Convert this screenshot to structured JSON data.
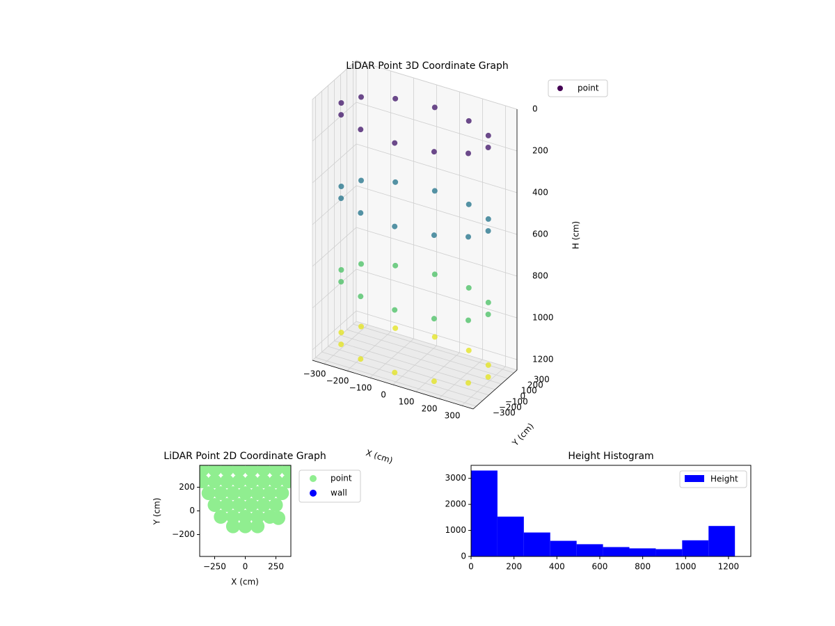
{
  "chart_data": [
    {
      "type": "scatter3d",
      "title": "LiDAR Point 3D Coordinate Graph",
      "xlabel": "X (cm)",
      "ylabel": "Y (cm)",
      "zlabel": "H (cm)",
      "colormap": "viridis",
      "zinverted": true,
      "legend": "upper right",
      "series": [
        {
          "name": "point",
          "color": "#440154",
          "x": [
            320,
            277,
            160,
            0,
            -160,
            -277,
            -320,
            -277,
            -160,
            0,
            160,
            277,
            320,
            277,
            160,
            0,
            -160,
            -277,
            -320,
            -277,
            -160,
            0,
            160,
            277,
            320,
            277,
            160,
            0,
            -160,
            -277,
            -320,
            -277,
            -160,
            0,
            160,
            277,
            320,
            277,
            160,
            0,
            -160,
            -277,
            -320,
            -277,
            -160,
            0,
            160,
            277
          ],
          "y": [
            0,
            160,
            277,
            320,
            277,
            160,
            0,
            -160,
            -277,
            -320,
            -277,
            -160,
            0,
            160,
            277,
            320,
            277,
            160,
            0,
            -160,
            -277,
            -320,
            -277,
            -160,
            0,
            160,
            277,
            320,
            277,
            160,
            0,
            -160,
            -277,
            -320,
            -277,
            -160,
            0,
            160,
            277,
            320,
            277,
            160,
            0,
            -160,
            -277,
            -320,
            -277,
            -160
          ],
          "z": [
            100,
            100,
            100,
            100,
            100,
            100,
            100,
            100,
            100,
            100,
            100,
            100,
            500,
            500,
            500,
            500,
            500,
            500,
            500,
            500,
            500,
            500,
            500,
            500,
            900,
            900,
            900,
            900,
            900,
            900,
            900,
            900,
            900,
            900,
            900,
            900,
            1200,
            1200,
            1200,
            1200,
            1200,
            1200,
            1200,
            1200,
            1200,
            1200,
            1200,
            1200
          ]
        }
      ],
      "xlim": [
        -350,
        350
      ],
      "ylim": [
        -350,
        350
      ],
      "zlim": [
        0,
        1250
      ],
      "xticks": [
        {
          "value": -300,
          "label": "−300"
        },
        {
          "value": -200,
          "label": "−200"
        },
        {
          "value": -100,
          "label": "−100"
        },
        0,
        100,
        200,
        300
      ],
      "yticks": [
        {
          "value": -300,
          "label": "−300"
        },
        {
          "value": -200,
          "label": "−200"
        },
        {
          "value": -100,
          "label": "−100"
        },
        0,
        100,
        200,
        300
      ],
      "zticks": [
        0,
        200,
        400,
        600,
        800,
        1000,
        1200
      ]
    },
    {
      "type": "scatter",
      "title": "LiDAR Point 2D Coordinate Graph",
      "xlabel": "X (cm)",
      "ylabel": "Y (cm)",
      "legend": "outside right",
      "series": [
        {
          "name": "point",
          "color": "#90ee90",
          "x": [
            -350,
            -250,
            -150,
            -50,
            50,
            150,
            250,
            350,
            -350,
            -250,
            -150,
            -50,
            50,
            150,
            250,
            350,
            -300,
            -200,
            -100,
            0,
            100,
            200,
            300,
            -250,
            -150,
            -50,
            50,
            150,
            250,
            -200,
            -100,
            0,
            100,
            200,
            270,
            -100,
            0,
            100
          ],
          "y": [
            350,
            350,
            350,
            350,
            350,
            350,
            350,
            350,
            250,
            250,
            250,
            250,
            250,
            250,
            250,
            250,
            150,
            150,
            150,
            150,
            150,
            150,
            150,
            50,
            50,
            50,
            50,
            50,
            50,
            -50,
            -50,
            -50,
            -50,
            -50,
            -60,
            -130,
            -130,
            -130
          ]
        },
        {
          "name": "wall",
          "color": "#0000ff",
          "x": [],
          "y": []
        }
      ],
      "xlim": [
        -372,
        372
      ],
      "ylim": [
        -385,
        385
      ],
      "xticks": [
        {
          "value": -250,
          "label": "−250"
        },
        0,
        250
      ],
      "yticks": [
        {
          "value": -200,
          "label": "−200"
        },
        0,
        200
      ]
    },
    {
      "type": "histogram",
      "title": "Height Histogram",
      "legend": "upper right",
      "bins": [
        0,
        123,
        246,
        369,
        492,
        615,
        738,
        861,
        984,
        1107,
        1230
      ],
      "series": [
        {
          "name": "Height",
          "color": "#0000ff",
          "values": [
            3300,
            1530,
            920,
            600,
            470,
            360,
            310,
            280,
            620,
            1170
          ]
        }
      ],
      "xlim": [
        0,
        1304
      ],
      "ylim": [
        0,
        3500
      ],
      "xticks": [
        0,
        200,
        400,
        600,
        800,
        1000,
        1200
      ],
      "yticks": [
        0,
        1000,
        2000,
        3000
      ]
    }
  ]
}
